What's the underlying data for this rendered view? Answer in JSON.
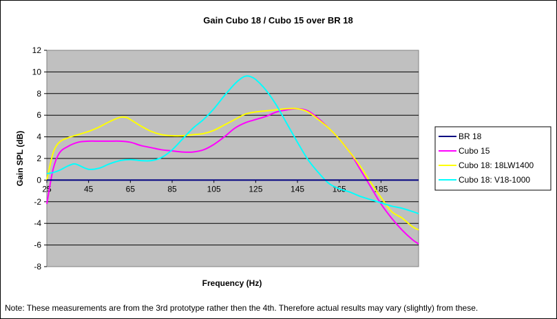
{
  "chart_data": {
    "type": "line",
    "title": "Gain Cubo 18 / Cubo 15 over BR 18",
    "xlabel": "Frequency (Hz)",
    "ylabel": "Gain SPL (dB)",
    "xlim": [
      25,
      203
    ],
    "ylim": [
      -8,
      12
    ],
    "x_ticks": [
      25,
      45,
      65,
      85,
      105,
      125,
      145,
      165,
      185
    ],
    "y_ticks": [
      12,
      10,
      8,
      6,
      4,
      2,
      0,
      -2,
      -4,
      -6,
      -8
    ],
    "grid": "horizontal",
    "plot_background": "#c0c0c0",
    "legend_position": "right",
    "series": [
      {
        "name": "BR 18",
        "color": "#000080",
        "x": [
          25,
          203
        ],
        "y": [
          0,
          0
        ]
      },
      {
        "name": "Cubo 15",
        "color": "#ff00ff",
        "x": [
          25,
          28,
          31,
          35,
          40,
          45,
          50,
          55,
          60,
          65,
          70,
          75,
          80,
          85,
          90,
          95,
          100,
          105,
          110,
          115,
          120,
          125,
          130,
          135,
          140,
          145,
          150,
          155,
          160,
          165,
          170,
          175,
          180,
          185,
          190,
          195,
          200,
          203
        ],
        "y": [
          -2.2,
          1.0,
          2.5,
          3.1,
          3.5,
          3.6,
          3.6,
          3.6,
          3.6,
          3.5,
          3.2,
          3.0,
          2.8,
          2.7,
          2.6,
          2.6,
          2.8,
          3.3,
          4.0,
          4.8,
          5.3,
          5.6,
          5.9,
          6.3,
          6.5,
          6.6,
          6.4,
          5.7,
          4.8,
          3.8,
          2.6,
          1.0,
          -0.6,
          -2.2,
          -3.5,
          -4.6,
          -5.5,
          -5.9
        ]
      },
      {
        "name": "Cubo 18: 18LW1400",
        "color": "#ffff00",
        "x": [
          25,
          28,
          31,
          35,
          40,
          45,
          50,
          55,
          60,
          63,
          65,
          70,
          75,
          80,
          85,
          90,
          95,
          100,
          105,
          110,
          115,
          120,
          125,
          130,
          135,
          140,
          145,
          150,
          155,
          160,
          165,
          170,
          175,
          180,
          185,
          190,
          195,
          200,
          203
        ],
        "y": [
          0.0,
          2.5,
          3.5,
          3.9,
          4.2,
          4.5,
          4.9,
          5.4,
          5.8,
          5.8,
          5.6,
          5.0,
          4.5,
          4.2,
          4.1,
          4.1,
          4.2,
          4.3,
          4.6,
          5.1,
          5.6,
          6.1,
          6.3,
          6.4,
          6.5,
          6.6,
          6.6,
          6.3,
          5.6,
          4.8,
          3.8,
          2.6,
          1.3,
          -0.2,
          -1.6,
          -2.9,
          -3.5,
          -4.3,
          -4.6
        ]
      },
      {
        "name": "Cubo 18: V18-1000",
        "color": "#00ffff",
        "x": [
          25,
          28,
          31,
          35,
          38,
          40,
          45,
          50,
          55,
          60,
          65,
          70,
          75,
          80,
          85,
          90,
          95,
          100,
          105,
          110,
          115,
          118,
          120,
          122,
          125,
          130,
          135,
          140,
          145,
          150,
          155,
          160,
          165,
          170,
          175,
          180,
          185,
          190,
          195,
          200,
          203
        ],
        "y": [
          0.6,
          0.7,
          0.9,
          1.3,
          1.5,
          1.4,
          1.0,
          1.1,
          1.5,
          1.8,
          1.9,
          1.8,
          1.8,
          2.1,
          2.8,
          3.8,
          4.8,
          5.6,
          6.6,
          7.8,
          8.9,
          9.4,
          9.6,
          9.6,
          9.3,
          8.3,
          6.9,
          5.2,
          3.5,
          1.9,
          0.7,
          -0.3,
          -0.8,
          -1.1,
          -1.5,
          -1.8,
          -2.1,
          -2.4,
          -2.6,
          -2.9,
          -3.1
        ]
      }
    ]
  },
  "footnote": "Note: These measurements are from the 3rd prototype rather then the 4th. Therefore actual results may vary (slightly) from these."
}
